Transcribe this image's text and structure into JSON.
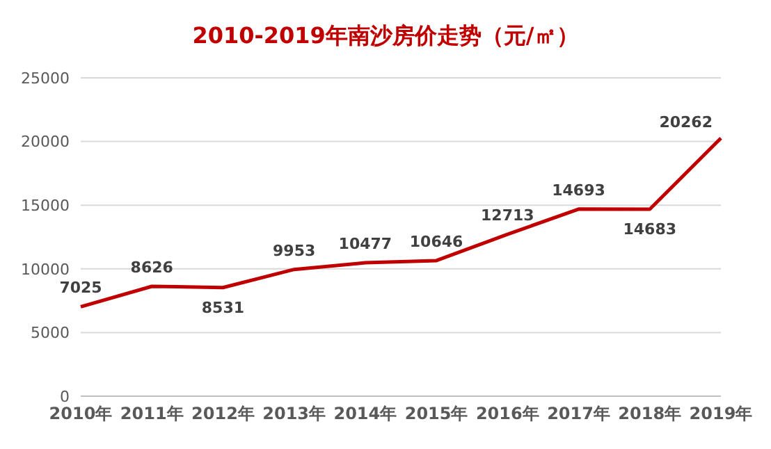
{
  "chart_data": {
    "type": "line",
    "title": "2010-2019年南沙房价走势（元/㎡）",
    "categories": [
      "2010年",
      "2011年",
      "2012年",
      "2013年",
      "2014年",
      "2015年",
      "2016年",
      "2017年",
      "2018年",
      "2019年"
    ],
    "series": [
      {
        "color": "#c00000",
        "values": [
          7025,
          8626,
          8531,
          9953,
          10477,
          10646,
          12713,
          14693,
          14683,
          20262
        ]
      }
    ],
    "ylim": [
      0,
      25000
    ],
    "yticks": [
      0,
      5000,
      10000,
      15000,
      20000,
      25000
    ],
    "grid": "y",
    "data_labels": true,
    "marker": "none",
    "line_style": "solid",
    "legend": false
  }
}
